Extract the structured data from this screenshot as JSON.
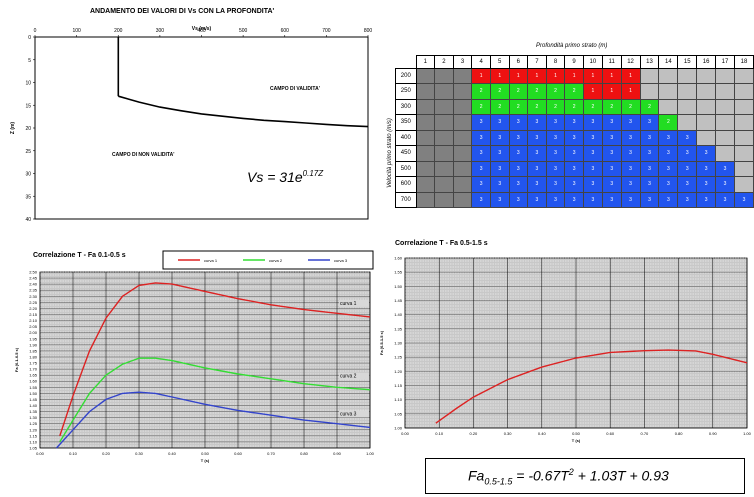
{
  "chart_data": [
    {
      "type": "line",
      "title": "ANDAMENTO DEI VALORI DI Vs CON LA PROFONDITA'",
      "xlabel": "Vs (m/s)",
      "ylabel": "Z (m)",
      "xlim": [
        0,
        800
      ],
      "ylim": [
        0,
        40
      ],
      "x_ticks": [
        "0",
        "100",
        "200",
        "300",
        "400",
        "500",
        "600",
        "700",
        "800"
      ],
      "y_ticks": [
        "0",
        "5",
        "10",
        "15",
        "20",
        "25",
        "30",
        "35",
        "40"
      ],
      "annotations": {
        "valid": "CAMPO DI VALIDITA'",
        "invalid": "CAMPO DI NON VALIDITA'"
      },
      "formula": {
        "base": "Vs = 31e",
        "exp": "0.17Z"
      },
      "series": [
        {
          "points": [
            [
              200,
              0
            ],
            [
              200,
              1
            ],
            [
              200,
              2
            ],
            [
              200,
              3
            ],
            [
              200,
              4
            ],
            [
              200,
              5
            ],
            [
              200,
              6
            ],
            [
              200,
              7
            ],
            [
              200,
              8
            ],
            [
              200,
              9
            ],
            [
              200,
              10
            ],
            [
              200,
              11
            ],
            [
              200,
              12
            ],
            [
              200,
              13
            ]
          ]
        },
        {
          "points": [
            [
              200,
              13
            ],
            [
              250,
              14.3
            ],
            [
              300,
              15.4
            ],
            [
              350,
              16.2
            ],
            [
              400,
              16.9
            ],
            [
              450,
              17.4
            ],
            [
              500,
              17.9
            ],
            [
              550,
              18.3
            ],
            [
              600,
              18.6
            ],
            [
              650,
              18.9
            ],
            [
              700,
              19.2
            ],
            [
              750,
              19.5
            ],
            [
              800,
              19.7
            ]
          ]
        }
      ]
    },
    {
      "type": "table",
      "header_top": "Profondità primo strato (m)",
      "row_header": "Velocità primo strato (m/s)",
      "columns": [
        "1",
        "2",
        "3",
        "4",
        "5",
        "6",
        "7",
        "8",
        "9",
        "10",
        "11",
        "12",
        "13",
        "14",
        "15",
        "16",
        "17",
        "18"
      ],
      "rows": [
        "200",
        "250",
        "300",
        "350",
        "400",
        "450",
        "500",
        "600",
        "700"
      ],
      "colors": {
        "c1": "#ee1111",
        "c2": "#22dd22",
        "c3": "#2255ee",
        "na": "#808080",
        "empty": "#c0c0c0"
      },
      "cells": [
        [
          "",
          "",
          "",
          "1",
          "1",
          "1",
          "1",
          "1",
          "1",
          "1",
          "1",
          "1",
          "",
          "",
          "",
          "",
          "",
          ""
        ],
        [
          "",
          "",
          "",
          "2",
          "2",
          "2",
          "2",
          "2",
          "2",
          "1",
          "1",
          "1",
          "",
          "",
          "",
          "",
          "",
          ""
        ],
        [
          "",
          "",
          "",
          "2",
          "2",
          "2",
          "2",
          "2",
          "2",
          "2",
          "2",
          "2",
          "2",
          "",
          "",
          "",
          "",
          ""
        ],
        [
          "",
          "",
          "",
          "3",
          "3",
          "3",
          "3",
          "3",
          "3",
          "3",
          "3",
          "3",
          "3",
          "2",
          "",
          "",
          "",
          ""
        ],
        [
          "",
          "",
          "",
          "3",
          "3",
          "3",
          "3",
          "3",
          "3",
          "3",
          "3",
          "3",
          "3",
          "3",
          "3",
          "",
          "",
          ""
        ],
        [
          "",
          "",
          "",
          "3",
          "3",
          "3",
          "3",
          "3",
          "3",
          "3",
          "3",
          "3",
          "3",
          "3",
          "3",
          "3",
          "",
          ""
        ],
        [
          "",
          "",
          "",
          "3",
          "3",
          "3",
          "3",
          "3",
          "3",
          "3",
          "3",
          "3",
          "3",
          "3",
          "3",
          "3",
          "3",
          ""
        ],
        [
          "",
          "",
          "",
          "3",
          "3",
          "3",
          "3",
          "3",
          "3",
          "3",
          "3",
          "3",
          "3",
          "3",
          "3",
          "3",
          "3",
          ""
        ],
        [
          "",
          "",
          "",
          "3",
          "3",
          "3",
          "3",
          "3",
          "3",
          "3",
          "3",
          "3",
          "3",
          "3",
          "3",
          "3",
          "3",
          "3"
        ]
      ]
    },
    {
      "type": "line",
      "title": "Correlazione T - Fa 0.1-0.5 s",
      "xlabel": "T (s)",
      "ylabel": "Fa (0.1-0.5 s)",
      "xlim": [
        0,
        1.0
      ],
      "ylim": [
        1.05,
        2.5
      ],
      "x_ticks": [
        "0.00",
        "0.10",
        "0.20",
        "0.30",
        "0.40",
        "0.50",
        "0.60",
        "0.70",
        "0.80",
        "0.90",
        "1.00"
      ],
      "y_ticks": [
        "1.05",
        "1.10",
        "1.15",
        "1.20",
        "1.25",
        "1.30",
        "1.35",
        "1.40",
        "1.45",
        "1.50",
        "1.55",
        "1.60",
        "1.65",
        "1.70",
        "1.75",
        "1.80",
        "1.85",
        "1.90",
        "1.95",
        "2.00",
        "2.05",
        "2.10",
        "2.15",
        "2.20",
        "2.25",
        "2.30",
        "2.35",
        "2.40",
        "2.45",
        "2.50"
      ],
      "series": [
        {
          "name": "curva 1",
          "color": "#dd2222",
          "label": "curva 1",
          "x": [
            0.06,
            0.1,
            0.15,
            0.2,
            0.25,
            0.3,
            0.35,
            0.4,
            0.5,
            0.6,
            0.7,
            0.8,
            0.9,
            1.0
          ],
          "y": [
            1.15,
            1.48,
            1.85,
            2.12,
            2.3,
            2.39,
            2.41,
            2.4,
            2.34,
            2.28,
            2.23,
            2.19,
            2.16,
            2.13
          ]
        },
        {
          "name": "curva 2",
          "color": "#33dd33",
          "label": "curva 2",
          "x": [
            0.06,
            0.1,
            0.15,
            0.2,
            0.25,
            0.3,
            0.35,
            0.4,
            0.5,
            0.6,
            0.7,
            0.8,
            0.9,
            1.0
          ],
          "y": [
            1.1,
            1.28,
            1.5,
            1.65,
            1.74,
            1.79,
            1.79,
            1.77,
            1.71,
            1.66,
            1.62,
            1.58,
            1.55,
            1.53
          ]
        },
        {
          "name": "curva 3",
          "color": "#3344cc",
          "label": "curva 3",
          "x": [
            0.05,
            0.1,
            0.15,
            0.2,
            0.25,
            0.3,
            0.35,
            0.4,
            0.5,
            0.6,
            0.7,
            0.8,
            0.9,
            1.0
          ],
          "y": [
            1.05,
            1.2,
            1.35,
            1.45,
            1.5,
            1.51,
            1.5,
            1.47,
            1.41,
            1.36,
            1.32,
            1.28,
            1.25,
            1.22
          ]
        }
      ]
    },
    {
      "type": "line",
      "title": "Correlazione T - Fa 0.5-1.5 s",
      "xlabel": "T (s)",
      "ylabel": "Fa (0.5-1.5 s)",
      "xlim": [
        0,
        1.0
      ],
      "ylim": [
        1.0,
        1.6
      ],
      "x_ticks": [
        "0.00",
        "0.10",
        "0.20",
        "0.30",
        "0.40",
        "0.50",
        "0.60",
        "0.70",
        "0.80",
        "0.90",
        "1.00"
      ],
      "y_ticks": [
        "1.00",
        "1.05",
        "1.10",
        "1.15",
        "1.20",
        "1.25",
        "1.30",
        "1.35",
        "1.40",
        "1.45",
        "1.50",
        "1.55",
        "1.60"
      ],
      "formula": {
        "lhs": "Fa",
        "sub": "0.5-1.5",
        "rhs1": " = -0.67T",
        "sup": "2",
        "rhs2": " + 1.03T + 0.93"
      },
      "series": [
        {
          "color": "#dd2222",
          "x": [
            0.09,
            0.15,
            0.2,
            0.3,
            0.4,
            0.5,
            0.6,
            0.7,
            0.77,
            0.85,
            0.9,
            1.0
          ],
          "y": [
            1.017,
            1.069,
            1.109,
            1.171,
            1.215,
            1.247,
            1.267,
            1.273,
            1.275,
            1.272,
            1.26,
            1.23
          ]
        }
      ]
    }
  ]
}
